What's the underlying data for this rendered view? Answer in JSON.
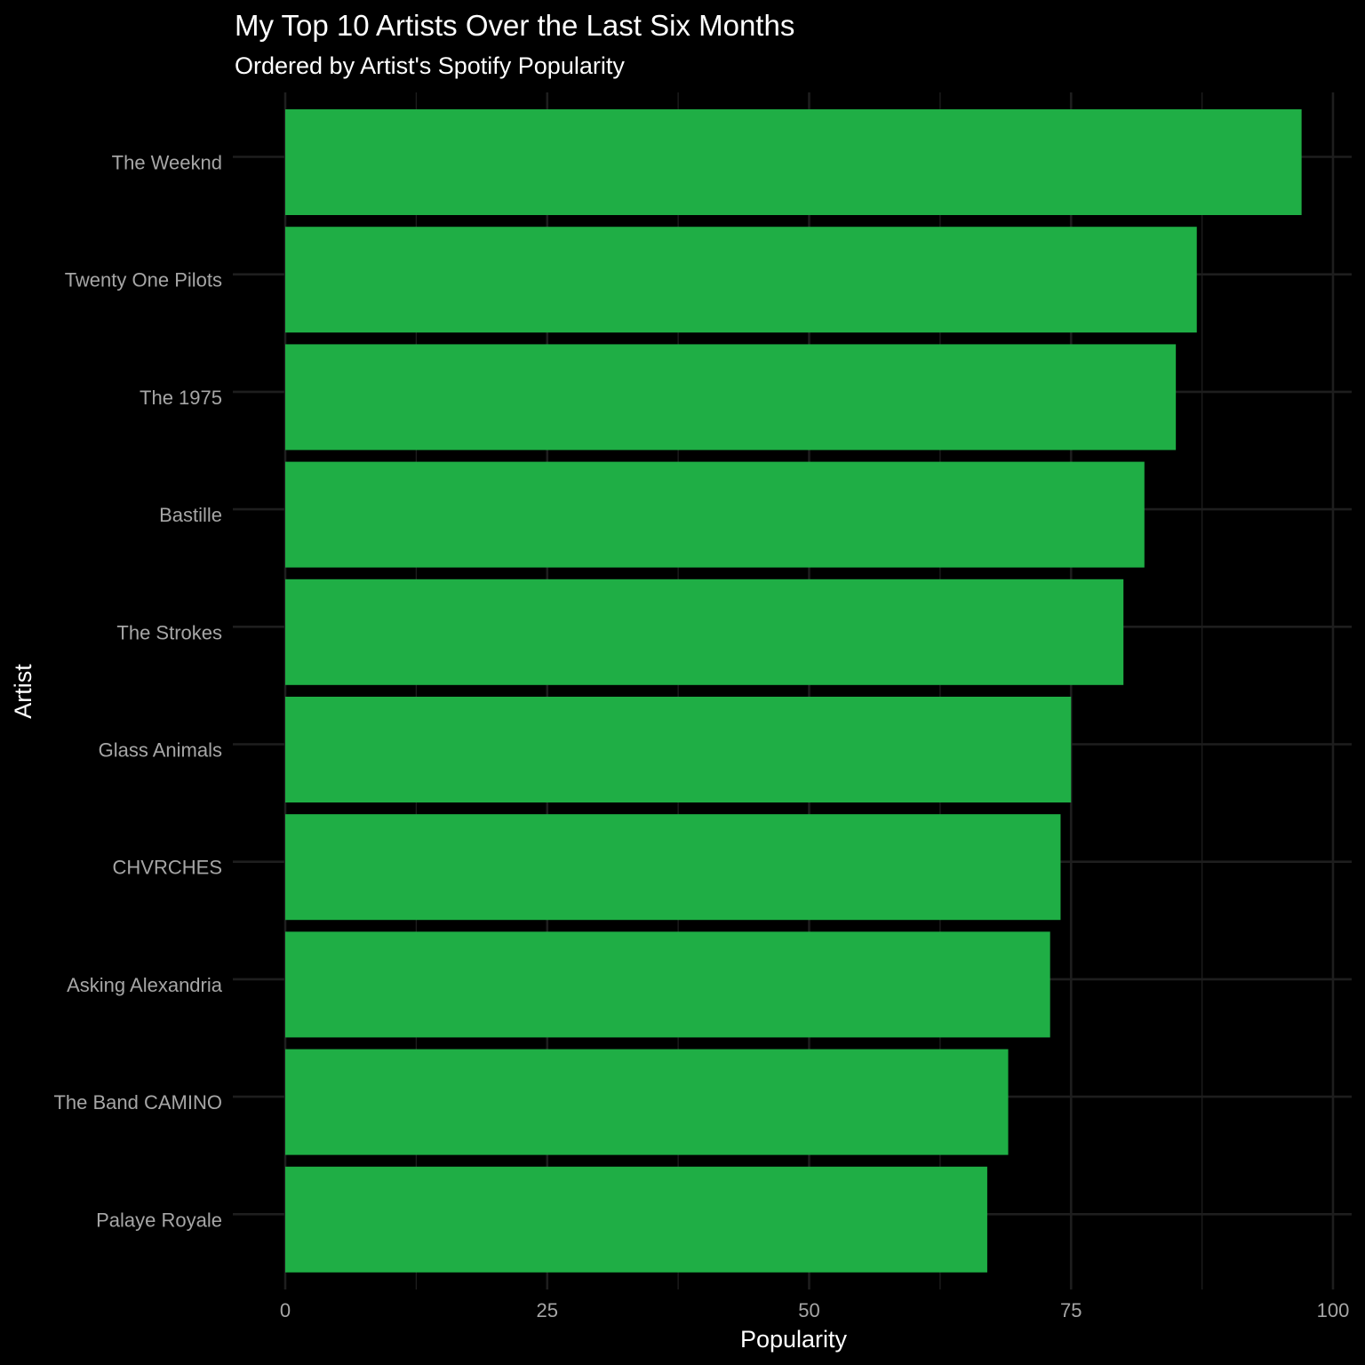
{
  "chart_data": {
    "type": "bar",
    "orientation": "horizontal",
    "title": "My Top 10 Artists Over the Last Six Months",
    "subtitle": "Ordered by Artist's Spotify Popularity",
    "xlabel": "Popularity",
    "ylabel": "Artist",
    "xlim": [
      0,
      100
    ],
    "xticks": [
      0,
      25,
      50,
      75,
      100
    ],
    "xtick_labels": [
      "0",
      "25",
      "50",
      "75",
      "100"
    ],
    "grid": true,
    "legend": "none",
    "colors": {
      "background": "#000000",
      "bar": "#1fae45",
      "grid": "#1e1e1e",
      "title_text": "#ffffff",
      "tick_text": "#a6a6a6"
    },
    "categories": [
      "The Weeknd",
      "Twenty One Pilots",
      "The 1975",
      "Bastille",
      "The Strokes",
      "Glass Animals",
      "CHVRCHES",
      "Asking Alexandria",
      "The Band CAMINO",
      "Palaye Royale"
    ],
    "values": [
      97,
      87,
      85,
      82,
      80,
      75,
      74,
      73,
      69,
      67
    ]
  }
}
